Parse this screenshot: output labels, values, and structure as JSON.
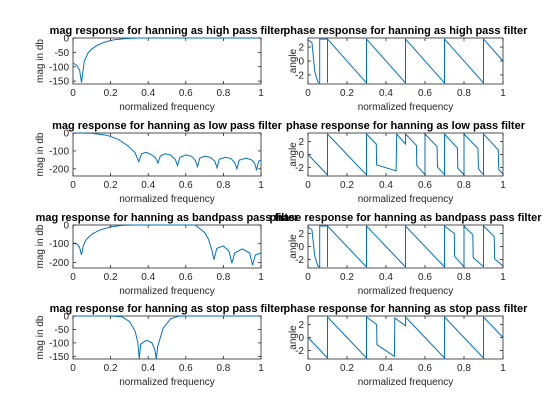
{
  "style": {
    "line_color": "#0072BD",
    "axis_color": "#262626",
    "background": "#ffffff"
  },
  "chart_data": [
    {
      "type": "line",
      "title": "mag response for hanning as high pass filter",
      "xlabel": "normalized frequency",
      "ylabel": "mag in db",
      "xlim": [
        0,
        1
      ],
      "ylim": [
        -160,
        0
      ],
      "xticks": [
        0,
        0.2,
        0.4,
        0.6,
        0.8,
        1
      ],
      "yticks": [
        -150,
        -100,
        -50,
        0
      ],
      "series": [
        {
          "values": [
            [
              0,
              -87
            ],
            [
              0.02,
              -95
            ],
            [
              0.035,
              -112
            ],
            [
              0.045,
              -155
            ],
            [
              0.05,
              -130
            ],
            [
              0.06,
              -80
            ],
            [
              0.08,
              -52
            ],
            [
              0.1,
              -38
            ],
            [
              0.13,
              -25
            ],
            [
              0.17,
              -14
            ],
            [
              0.22,
              -6
            ],
            [
              0.28,
              -2
            ],
            [
              0.33,
              -0.5
            ],
            [
              0.36,
              0
            ],
            [
              1,
              0
            ]
          ]
        }
      ]
    },
    {
      "type": "line",
      "title": "phase response for hanning as high pass filter",
      "xlabel": "normalized frequency",
      "ylabel": "angle",
      "xlim": [
        0,
        1
      ],
      "ylim": [
        -3.3,
        3.3
      ],
      "xticks": [
        0,
        0.2,
        0.4,
        0.6,
        0.8,
        1
      ],
      "yticks": [
        -2,
        0,
        2
      ],
      "series": [
        {
          "values": [
            [
              0,
              3
            ],
            [
              0.02,
              2.7
            ],
            [
              0.035,
              -1.5
            ],
            [
              0.05,
              -3
            ],
            [
              0.06,
              -3.14
            ],
            [
              0.06,
              3.14
            ],
            [
              0.1,
              3.14
            ],
            [
              0.1,
              -3.14
            ],
            [
              0.1,
              3.14
            ],
            [
              0.3,
              -3.14
            ],
            [
              0.3,
              3.14
            ],
            [
              0.5,
              -3.14
            ],
            [
              0.5,
              3.14
            ],
            [
              0.7,
              -3.14
            ],
            [
              0.7,
              3.14
            ],
            [
              0.9,
              -3.14
            ],
            [
              0.9,
              3.14
            ],
            [
              1,
              0
            ]
          ]
        }
      ]
    },
    {
      "type": "line",
      "title": "mag response for hanning as low pass filter",
      "xlabel": "normalized frequency",
      "ylabel": "mag in db",
      "xlim": [
        0,
        1
      ],
      "ylim": [
        -240,
        0
      ],
      "xticks": [
        0,
        0.2,
        0.4,
        0.6,
        0.8,
        1
      ],
      "yticks": [
        -200,
        -100,
        0
      ],
      "series": [
        {
          "values": [
            [
              0,
              0
            ],
            [
              0.1,
              -1
            ],
            [
              0.18,
              -12
            ],
            [
              0.24,
              -35
            ],
            [
              0.29,
              -70
            ],
            [
              0.33,
              -110
            ],
            [
              0.35,
              -160
            ],
            [
              0.365,
              -115
            ],
            [
              0.39,
              -108
            ],
            [
              0.42,
              -123
            ],
            [
              0.44,
              -140
            ],
            [
              0.452,
              -168
            ],
            [
              0.465,
              -128
            ],
            [
              0.49,
              -116
            ],
            [
              0.52,
              -124
            ],
            [
              0.545,
              -150
            ],
            [
              0.556,
              -182
            ],
            [
              0.568,
              -136
            ],
            [
              0.6,
              -122
            ],
            [
              0.63,
              -130
            ],
            [
              0.65,
              -152
            ],
            [
              0.662,
              -188
            ],
            [
              0.674,
              -140
            ],
            [
              0.7,
              -130
            ],
            [
              0.73,
              -135
            ],
            [
              0.755,
              -158
            ],
            [
              0.766,
              -194
            ],
            [
              0.778,
              -146
            ],
            [
              0.81,
              -136
            ],
            [
              0.84,
              -142
            ],
            [
              0.86,
              -165
            ],
            [
              0.872,
              -200
            ],
            [
              0.884,
              -152
            ],
            [
              0.92,
              -140
            ],
            [
              0.95,
              -150
            ],
            [
              0.966,
              -168
            ],
            [
              0.976,
              -205
            ],
            [
              0.988,
              -158
            ],
            [
              1,
              -150
            ]
          ]
        }
      ]
    },
    {
      "type": "line",
      "title": "phase response for hanning as low pass filter",
      "xlabel": "normalized frequency",
      "ylabel": "angle",
      "xlim": [
        0,
        1
      ],
      "ylim": [
        -3.3,
        3.3
      ],
      "xticks": [
        0,
        0.2,
        0.4,
        0.6,
        0.8,
        1
      ],
      "yticks": [
        -2,
        0,
        2
      ],
      "series": [
        {
          "values": [
            [
              0,
              0
            ],
            [
              0.1,
              -3.14
            ],
            [
              0.1,
              3.14
            ],
            [
              0.3,
              -3.14
            ],
            [
              0.3,
              3.14
            ],
            [
              0.35,
              1.6
            ],
            [
              0.352,
              -1.6
            ],
            [
              0.452,
              -2.5
            ],
            [
              0.455,
              3.14
            ],
            [
              0.5,
              1.6
            ],
            [
              0.5,
              3.14
            ],
            [
              0.556,
              1.4
            ],
            [
              0.558,
              -1.7
            ],
            [
              0.6,
              -3.1
            ],
            [
              0.6,
              3.14
            ],
            [
              0.662,
              1.2
            ],
            [
              0.664,
              -1.9
            ],
            [
              0.7,
              -3.1
            ],
            [
              0.7,
              3.14
            ],
            [
              0.766,
              1.0
            ],
            [
              0.768,
              -2.1
            ],
            [
              0.8,
              -3.1
            ],
            [
              0.8,
              3.14
            ],
            [
              0.872,
              0.9
            ],
            [
              0.874,
              -2.2
            ],
            [
              0.9,
              -3.1
            ],
            [
              0.9,
              3.14
            ],
            [
              0.976,
              0.7
            ],
            [
              0.978,
              -2.3
            ],
            [
              1,
              -3
            ]
          ]
        }
      ]
    },
    {
      "type": "line",
      "title": "mag response for hanning as bandpass pass filter",
      "xlabel": "normalized frequency",
      "ylabel": "mag in db",
      "xlim": [
        0,
        1
      ],
      "ylim": [
        -230,
        0
      ],
      "xticks": [
        0,
        0.2,
        0.4,
        0.6,
        0.8,
        1
      ],
      "yticks": [
        -200,
        -100,
        0
      ],
      "series": [
        {
          "values": [
            [
              0,
              -95
            ],
            [
              0.02,
              -100
            ],
            [
              0.035,
              -120
            ],
            [
              0.045,
              -160
            ],
            [
              0.055,
              -110
            ],
            [
              0.07,
              -78
            ],
            [
              0.1,
              -50
            ],
            [
              0.14,
              -28
            ],
            [
              0.2,
              -10
            ],
            [
              0.26,
              -2
            ],
            [
              0.32,
              0
            ],
            [
              0.65,
              0
            ],
            [
              0.7,
              -40
            ],
            [
              0.72,
              -75
            ],
            [
              0.74,
              -140
            ],
            [
              0.75,
              -185
            ],
            [
              0.765,
              -125
            ],
            [
              0.8,
              -112
            ],
            [
              0.83,
              -140
            ],
            [
              0.845,
              -205
            ],
            [
              0.86,
              -150
            ],
            [
              0.9,
              -128
            ],
            [
              0.94,
              -150
            ],
            [
              0.955,
              -215
            ],
            [
              0.97,
              -160
            ],
            [
              1,
              -150
            ]
          ]
        }
      ]
    },
    {
      "type": "line",
      "title": "phase response for hanning as bandpass pass filter",
      "xlabel": "normalized frequency",
      "ylabel": "angle",
      "xlim": [
        0,
        1
      ],
      "ylim": [
        -3.3,
        3.3
      ],
      "xticks": [
        0,
        0.2,
        0.4,
        0.6,
        0.8,
        1
      ],
      "yticks": [
        -2,
        0,
        2
      ],
      "series": [
        {
          "values": [
            [
              0,
              3
            ],
            [
              0.02,
              2.6
            ],
            [
              0.035,
              -1.5
            ],
            [
              0.05,
              -3
            ],
            [
              0.06,
              -3.14
            ],
            [
              0.06,
              3.14
            ],
            [
              0.1,
              3.14
            ],
            [
              0.1,
              -3.14
            ],
            [
              0.1,
              3.14
            ],
            [
              0.3,
              -3.14
            ],
            [
              0.3,
              3.14
            ],
            [
              0.5,
              -3.14
            ],
            [
              0.5,
              3.14
            ],
            [
              0.7,
              -3.14
            ],
            [
              0.7,
              3.14
            ],
            [
              0.75,
              2.0
            ],
            [
              0.752,
              -1.5
            ],
            [
              0.8,
              -3.1
            ],
            [
              0.8,
              3.14
            ],
            [
              0.845,
              1.8
            ],
            [
              0.847,
              -1.7
            ],
            [
              0.9,
              -3.1
            ],
            [
              0.9,
              3.14
            ],
            [
              0.955,
              1.5
            ],
            [
              0.957,
              -1.9
            ],
            [
              1,
              -3
            ]
          ]
        }
      ]
    },
    {
      "type": "line",
      "title": "mag response for hanning as stop pass filter",
      "xlabel": "normalized frequency",
      "ylabel": "mag in db",
      "xlim": [
        0,
        1
      ],
      "ylim": [
        -160,
        0
      ],
      "xticks": [
        0,
        0.2,
        0.4,
        0.6,
        0.8,
        1
      ],
      "yticks": [
        -150,
        -100,
        -50,
        0
      ],
      "series": [
        {
          "values": [
            [
              0,
              0
            ],
            [
              0.2,
              0
            ],
            [
              0.26,
              -3
            ],
            [
              0.3,
              -20
            ],
            [
              0.33,
              -55
            ],
            [
              0.345,
              -100
            ],
            [
              0.352,
              -160
            ],
            [
              0.36,
              -105
            ],
            [
              0.39,
              -90
            ],
            [
              0.42,
              -100
            ],
            [
              0.435,
              -125
            ],
            [
              0.443,
              -160
            ],
            [
              0.45,
              -115
            ],
            [
              0.48,
              -45
            ],
            [
              0.52,
              -10
            ],
            [
              0.56,
              -1
            ],
            [
              0.6,
              0
            ],
            [
              1,
              0
            ]
          ]
        }
      ]
    },
    {
      "type": "line",
      "title": "phase response for hanning as stop pass filter",
      "xlabel": "normalized frequency",
      "ylabel": "angle",
      "xlim": [
        0,
        1
      ],
      "ylim": [
        -3.3,
        3.3
      ],
      "xticks": [
        0,
        0.2,
        0.4,
        0.6,
        0.8,
        1
      ],
      "yticks": [
        -2,
        0,
        2
      ],
      "series": [
        {
          "values": [
            [
              0,
              0
            ],
            [
              0.1,
              -3.14
            ],
            [
              0.1,
              3.14
            ],
            [
              0.3,
              -3.14
            ],
            [
              0.3,
              3.14
            ],
            [
              0.352,
              2.0
            ],
            [
              0.354,
              -1.1
            ],
            [
              0.443,
              -2.9
            ],
            [
              0.445,
              3.0
            ],
            [
              0.5,
              1.8
            ],
            [
              0.5,
              3.14
            ],
            [
              0.7,
              -3.14
            ],
            [
              0.7,
              3.14
            ],
            [
              0.9,
              -3.14
            ],
            [
              0.9,
              3.14
            ],
            [
              1,
              0
            ]
          ]
        }
      ]
    }
  ]
}
